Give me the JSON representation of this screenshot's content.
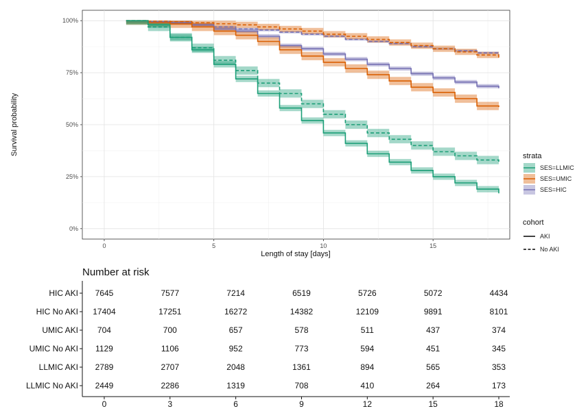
{
  "chart_data": [
    {
      "type": "line",
      "subtype": "kaplan-meier step curves with confidence bands",
      "xlabel": "Length of stay [days]",
      "ylabel": "Survival probability",
      "xlim": [
        -1,
        18.5
      ],
      "ylim": [
        -0.05,
        1.05
      ],
      "xticks": [
        0,
        5,
        10,
        15
      ],
      "xtick_labels": [
        "0",
        "5",
        "10",
        "15"
      ],
      "yticks": [
        0,
        0.25,
        0.5,
        0.75,
        1.0
      ],
      "ytick_labels": [
        "0%",
        "25%",
        "50%",
        "75%",
        "100%"
      ],
      "grid": true,
      "legend_placement": "right",
      "legend": {
        "strata_title": "strata",
        "strata": [
          {
            "label": "SES=LLMIC",
            "color": "#1b9e77"
          },
          {
            "label": "SES=UMIC",
            "color": "#d95f02"
          },
          {
            "label": "SES=HIC",
            "color": "#7570b3"
          }
        ],
        "cohort_title": "cohort",
        "cohort": [
          {
            "label": "AKI",
            "dash": "solid"
          },
          {
            "label": "No AKI",
            "dash": "dashed"
          }
        ]
      },
      "x": [
        1,
        2,
        3,
        4,
        5,
        6,
        7,
        8,
        9,
        10,
        11,
        12,
        13,
        14,
        15,
        16,
        17,
        18
      ],
      "series": [
        {
          "strata": "SES=HIC",
          "cohort": "AKI",
          "color": "#7570b3",
          "dash": "solid",
          "band": 0.01,
          "values": [
            1.0,
            0.995,
            0.99,
            0.98,
            0.96,
            0.95,
            0.925,
            0.88,
            0.865,
            0.84,
            0.815,
            0.79,
            0.77,
            0.745,
            0.725,
            0.705,
            0.685,
            0.675
          ]
        },
        {
          "strata": "SES=HIC",
          "cohort": "No AKI",
          "color": "#7570b3",
          "dash": "dashed",
          "band": 0.006,
          "values": [
            1.0,
            0.998,
            0.99,
            0.98,
            0.97,
            0.96,
            0.955,
            0.945,
            0.935,
            0.925,
            0.91,
            0.9,
            0.89,
            0.875,
            0.865,
            0.855,
            0.845,
            0.835
          ]
        },
        {
          "strata": "SES=UMIC",
          "cohort": "AKI",
          "color": "#d95f02",
          "dash": "solid",
          "band": 0.02,
          "values": [
            1.0,
            0.99,
            0.985,
            0.97,
            0.95,
            0.93,
            0.9,
            0.86,
            0.83,
            0.8,
            0.77,
            0.74,
            0.71,
            0.68,
            0.655,
            0.625,
            0.59,
            0.585
          ]
        },
        {
          "strata": "SES=UMIC",
          "cohort": "No AKI",
          "color": "#d95f02",
          "dash": "dashed",
          "band": 0.015,
          "values": [
            1.0,
            0.998,
            0.995,
            0.99,
            0.985,
            0.98,
            0.97,
            0.96,
            0.95,
            0.935,
            0.925,
            0.91,
            0.895,
            0.88,
            0.865,
            0.85,
            0.835,
            0.82
          ]
        },
        {
          "strata": "SES=LLMIC",
          "cohort": "AKI",
          "color": "#1b9e77",
          "dash": "solid",
          "band": 0.015,
          "values": [
            1.0,
            0.98,
            0.92,
            0.86,
            0.79,
            0.72,
            0.65,
            0.58,
            0.52,
            0.46,
            0.41,
            0.36,
            0.32,
            0.28,
            0.25,
            0.22,
            0.19,
            0.17
          ]
        },
        {
          "strata": "SES=LLMIC",
          "cohort": "No AKI",
          "color": "#1b9e77",
          "dash": "dashed",
          "band": 0.02,
          "values": [
            1.0,
            0.97,
            0.92,
            0.87,
            0.81,
            0.76,
            0.7,
            0.65,
            0.6,
            0.55,
            0.5,
            0.46,
            0.43,
            0.4,
            0.37,
            0.35,
            0.33,
            0.32
          ]
        }
      ]
    },
    {
      "type": "table",
      "title": "Number at risk",
      "x": [
        0,
        3,
        6,
        9,
        12,
        15,
        18
      ],
      "rows": [
        {
          "label": "HIC AKI",
          "values": [
            "7645",
            "7577",
            "7214",
            "6519",
            "5726",
            "5072",
            "4434"
          ]
        },
        {
          "label": "HIC No AKI",
          "values": [
            "17404",
            "17251",
            "16272",
            "14382",
            "12109",
            "9891",
            "8101"
          ]
        },
        {
          "label": "UMIC AKI",
          "values": [
            "704",
            "700",
            "657",
            "578",
            "511",
            "437",
            "374"
          ]
        },
        {
          "label": "UMIC No AKI",
          "values": [
            "1129",
            "1106",
            "952",
            "773",
            "594",
            "451",
            "345"
          ]
        },
        {
          "label": "LLMIC AKI",
          "values": [
            "2789",
            "2707",
            "2048",
            "1361",
            "894",
            "565",
            "353"
          ]
        },
        {
          "label": "LLMIC No AKI",
          "values": [
            "2449",
            "2286",
            "1319",
            "708",
            "410",
            "264",
            "173"
          ]
        }
      ]
    }
  ]
}
